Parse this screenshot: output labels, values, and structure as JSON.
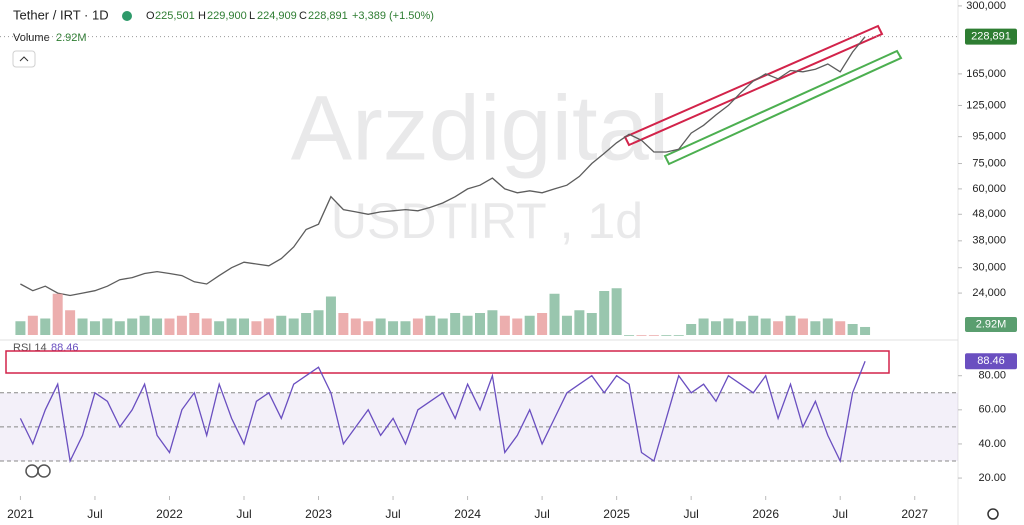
{
  "header": {
    "symbol": "Tether / IRT · 1D",
    "ohlc": [
      {
        "key": "O",
        "value": "225,501"
      },
      {
        "key": "H",
        "value": "229,900"
      },
      {
        "key": "L",
        "value": "224,909"
      },
      {
        "key": "C",
        "value": "228,891"
      }
    ],
    "change": "+3,389 (+1.50%)"
  },
  "watermark": {
    "brand": "Arzdigital",
    "symbol": "USDTIRT , 1d"
  },
  "chart_data": [
    {
      "type": "line",
      "log_scale": true,
      "color": "#5d5d5d",
      "x": [
        "2021-01",
        "2021-02",
        "2021-03",
        "2021-04",
        "2021-05",
        "2021-06",
        "2021-07",
        "2021-08",
        "2021-09",
        "2021-10",
        "2021-11",
        "2021-12",
        "2022-01",
        "2022-02",
        "2022-03",
        "2022-04",
        "2022-05",
        "2022-06",
        "2022-07",
        "2022-08",
        "2022-09",
        "2022-10",
        "2022-11",
        "2022-12",
        "2023-01",
        "2023-02",
        "2023-03",
        "2023-04",
        "2023-05",
        "2023-06",
        "2023-07",
        "2023-08",
        "2023-09",
        "2023-10",
        "2023-11",
        "2023-12",
        "2024-01",
        "2024-02",
        "2024-03",
        "2024-04",
        "2024-05",
        "2024-06",
        "2024-07",
        "2024-08",
        "2024-09",
        "2024-10",
        "2024-11",
        "2024-12",
        "2025-01",
        "2025-02",
        "2025-03",
        "2025-04",
        "2025-05",
        "2025-06",
        "2025-07",
        "2025-08",
        "2025-09",
        "2025-10",
        "2025-11",
        "2025-12",
        "2026-01",
        "2026-02",
        "2026-03",
        "2026-04",
        "2026-05",
        "2026-06",
        "2026-07",
        "2026-08",
        "2026-09"
      ],
      "values": [
        26000,
        24500,
        25500,
        24000,
        23500,
        24000,
        24500,
        25500,
        27000,
        27500,
        28500,
        29000,
        28500,
        28000,
        26500,
        26000,
        28000,
        30000,
        31500,
        31000,
        30500,
        32500,
        36000,
        42000,
        44000,
        56000,
        50000,
        49000,
        48000,
        49000,
        49500,
        50000,
        49500,
        51000,
        53000,
        56000,
        60000,
        62000,
        66000,
        60000,
        58000,
        59000,
        58000,
        60000,
        62000,
        67000,
        75000,
        82000,
        90000,
        97000,
        92000,
        83000,
        83000,
        85000,
        98000,
        105000,
        115000,
        125000,
        140000,
        155000,
        165000,
        158000,
        170000,
        168000,
        172000,
        180000,
        168000,
        200000,
        228891
      ],
      "xlim": [
        "2020-12",
        "2027-04"
      ],
      "xticks": [
        {
          "value": "2021-01",
          "label": "2021"
        },
        {
          "value": "2021-07",
          "label": "Jul"
        },
        {
          "value": "2022-01",
          "label": "2022"
        },
        {
          "value": "2022-07",
          "label": "Jul"
        },
        {
          "value": "2023-01",
          "label": "2023"
        },
        {
          "value": "2023-07",
          "label": "Jul"
        },
        {
          "value": "2024-01",
          "label": "2024"
        },
        {
          "value": "2024-07",
          "label": "Jul"
        },
        {
          "value": "2025-01",
          "label": "2025"
        },
        {
          "value": "2025-07",
          "label": "Jul"
        },
        {
          "value": "2026-01",
          "label": "2026"
        },
        {
          "value": "2026-07",
          "label": "Jul"
        },
        {
          "value": "2027-01",
          "label": "2027"
        }
      ],
      "ylim": [
        16600,
        316000
      ],
      "yticks": [
        {
          "value": 300000,
          "label": "300,000"
        },
        {
          "value": 165000,
          "label": "165,000"
        },
        {
          "value": 125000,
          "label": "125,000"
        },
        {
          "value": 95000,
          "label": "95,000"
        },
        {
          "value": 75000,
          "label": "75,000"
        },
        {
          "value": 60000,
          "label": "60,000"
        },
        {
          "value": 48000,
          "label": "48,000"
        },
        {
          "value": 38000,
          "label": "38,000"
        },
        {
          "value": 30000,
          "label": "30,000"
        },
        {
          "value": 24000,
          "label": "24,000"
        }
      ]
    },
    {
      "type": "bar",
      "title": "Volume",
      "last_label": "2.92M",
      "up_color": "#7fb89a",
      "down_color": "#e79a9a",
      "values": [
        5,
        7,
        6,
        15,
        9,
        6,
        5,
        6,
        5,
        6,
        7,
        6,
        6,
        7,
        8,
        6,
        5,
        6,
        6,
        5,
        6,
        7,
        6,
        8,
        9,
        14,
        8,
        6,
        5,
        6,
        5,
        5,
        6,
        7,
        6,
        8,
        7,
        8,
        9,
        7,
        6,
        7,
        8,
        15,
        7,
        9,
        8,
        16,
        17,
        0,
        0,
        0,
        0,
        0,
        4,
        6,
        5,
        6,
        5,
        7,
        6,
        5,
        7,
        6,
        5,
        6,
        5,
        4,
        2.92
      ],
      "ylim": [
        0,
        20
      ]
    },
    {
      "type": "line",
      "title": "RSI 14",
      "last_label": "88.46",
      "color": "#6a4fc0",
      "levels": [
        70,
        50,
        30
      ],
      "values": [
        55,
        40,
        60,
        75,
        30,
        45,
        70,
        65,
        50,
        60,
        75,
        45,
        35,
        60,
        70,
        45,
        75,
        55,
        40,
        65,
        70,
        55,
        75,
        80,
        85,
        70,
        40,
        50,
        60,
        45,
        55,
        40,
        60,
        65,
        70,
        55,
        75,
        60,
        80,
        35,
        45,
        60,
        40,
        55,
        70,
        75,
        80,
        70,
        80,
        75,
        35,
        30,
        55,
        80,
        70,
        75,
        65,
        80,
        75,
        70,
        80,
        55,
        75,
        50,
        65,
        45,
        30,
        70,
        88.46
      ],
      "ylim": [
        13,
        98
      ],
      "yticks": [
        {
          "value": 80,
          "label": "80.00"
        },
        {
          "value": 60,
          "label": "60.00"
        },
        {
          "value": 40,
          "label": "40.00"
        },
        {
          "value": 20,
          "label": "20.00"
        }
      ]
    }
  ]
}
